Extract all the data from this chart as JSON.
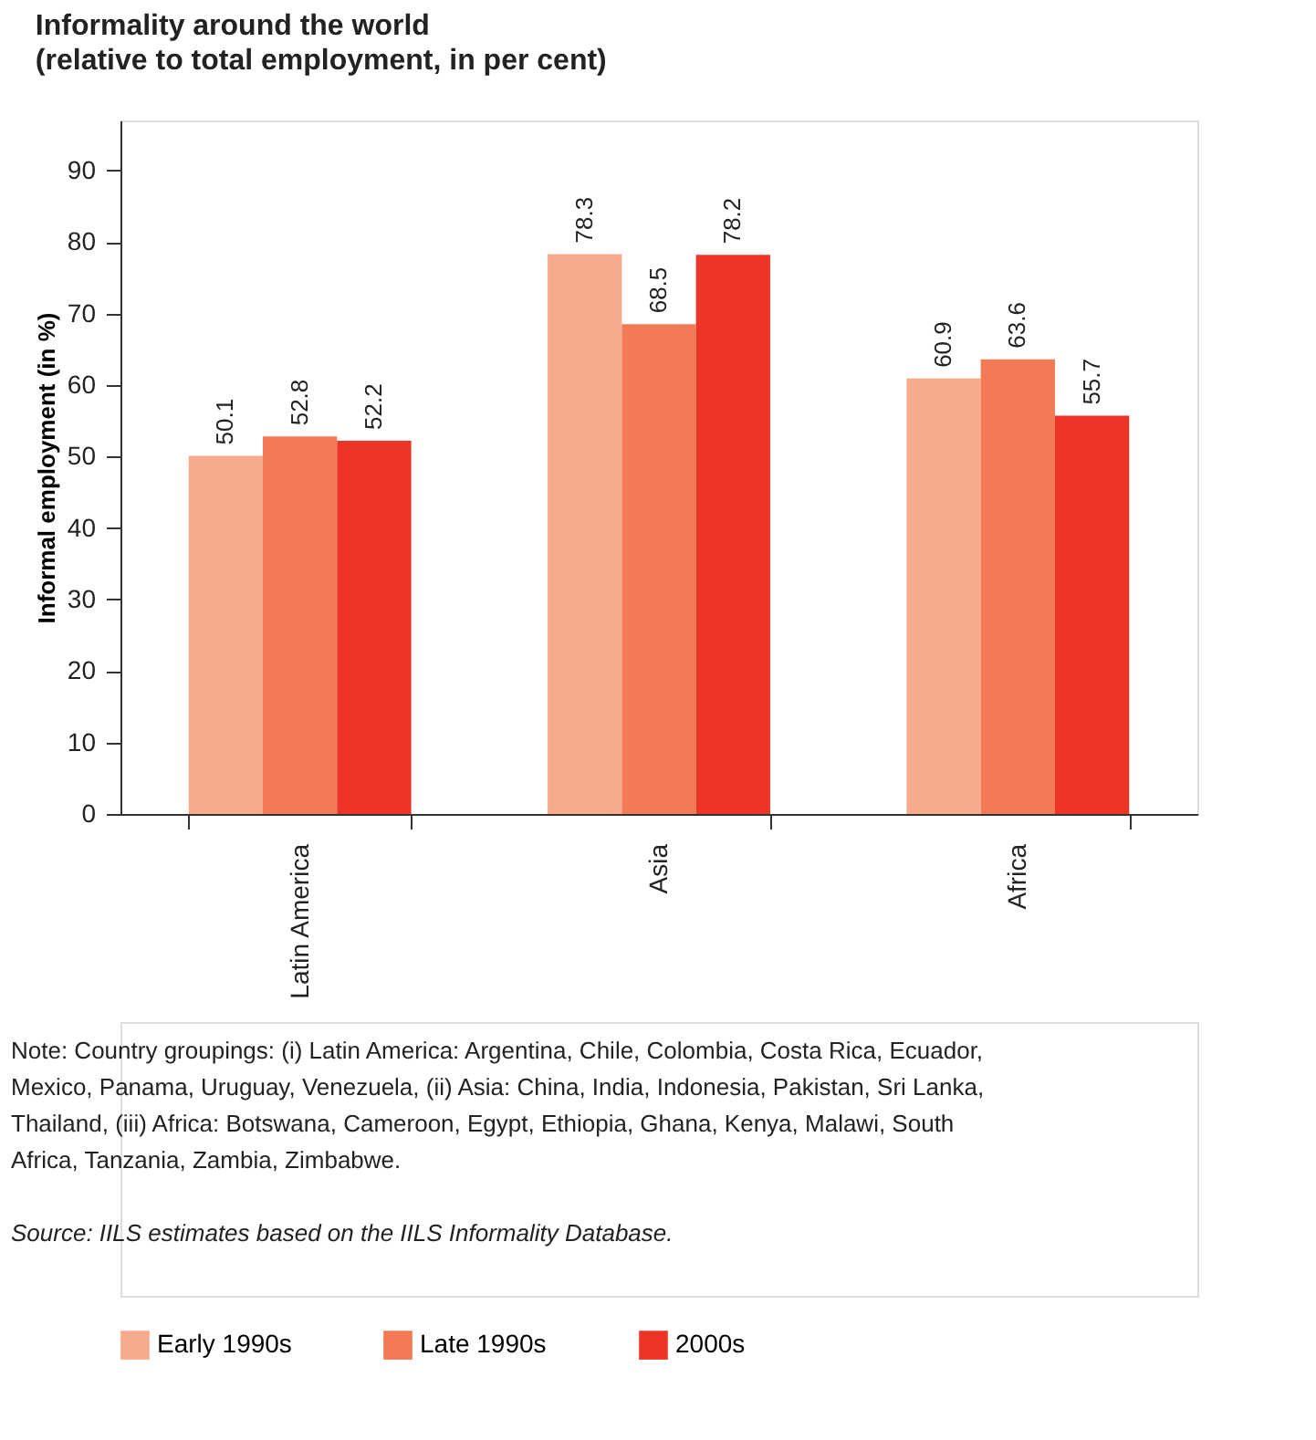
{
  "chart_data": {
    "type": "bar",
    "title": "Informality around the world",
    "subtitle": "(relative to total employment, in per cent)",
    "ylabel": "Informal employment (in %)",
    "categories": [
      "Latin America",
      "Asia",
      "Africa"
    ],
    "series": [
      {
        "name": "Early 1990s",
        "color": "#f8ab8c",
        "values": [
          50.1,
          78.3,
          60.9
        ]
      },
      {
        "name": "Late 1990s",
        "color": "#f27a55",
        "values": [
          52.8,
          68.5,
          63.6
        ]
      },
      {
        "name": "2000s",
        "color": "#ec3526",
        "values": [
          52.2,
          78.2,
          55.7
        ]
      }
    ],
    "ylim": [
      0,
      97
    ],
    "yticks": [
      0,
      10,
      20,
      30,
      40,
      50,
      60,
      70,
      80,
      90
    ],
    "grid": false,
    "legend": "bottom",
    "data_labels": true,
    "annotations": [
      "Note: Country groupings: (i) Latin America: Argentina, Chile, Colombia, Costa Rica, Ecuador, Mexico, Panama, Uruguay, Venezuela, (ii) Asia: China, India, Indonesia, Pakistan, Sri Lanka, Thailand, (iii) Africa: Botswana, Cameroon, Egypt, Ethiopia, Ghana, Kenya, Malawi, South Africa, Tanzania, Zambia, Zimbabwe.",
      "Source: IILS estimates based on the IILS Informality Database."
    ]
  }
}
